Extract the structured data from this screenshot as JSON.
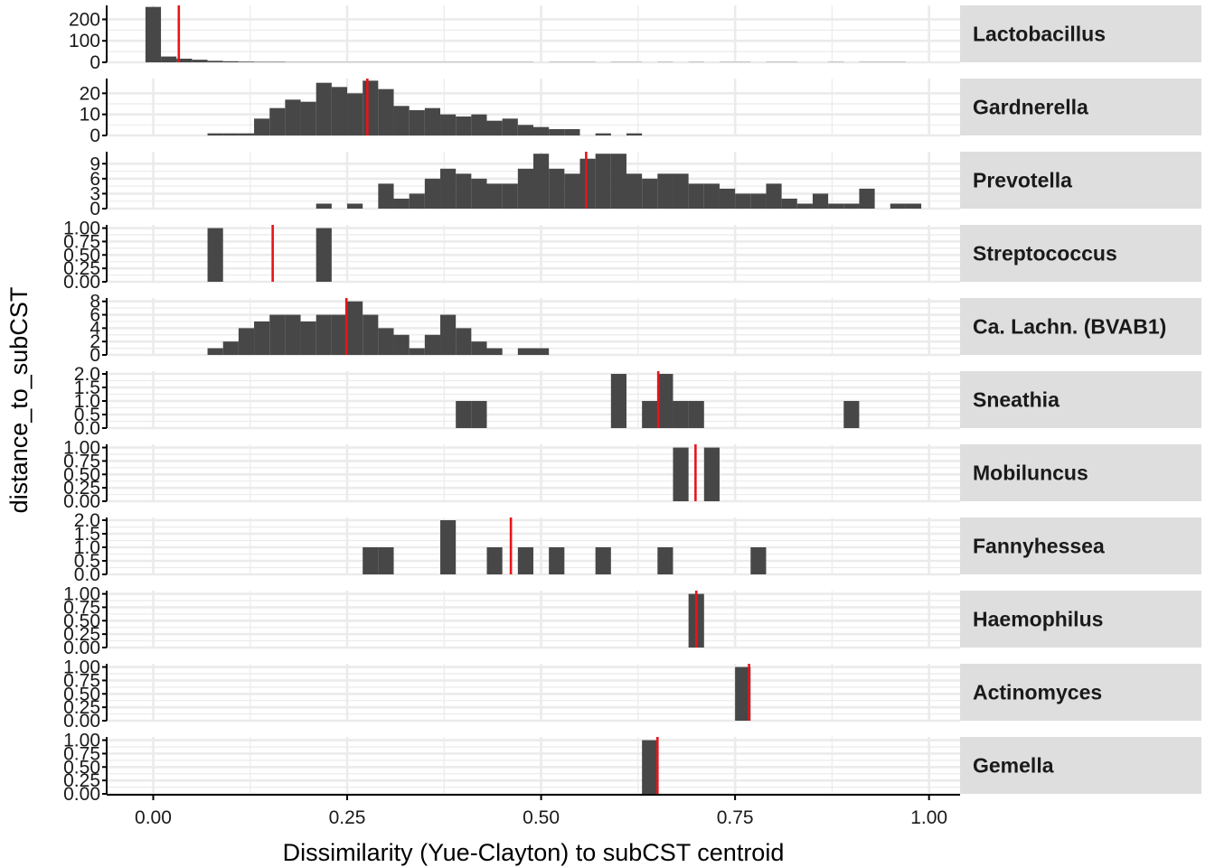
{
  "colors": {
    "bar": "#474747",
    "mean_line": "#e8141b",
    "grid": "#ebebeb",
    "strip": "#dedede",
    "axis": "#000000"
  },
  "chart_data": {
    "type": "bar",
    "xlabel": "Dissimilarity (Yue-Clayton) to subCST centroid",
    "ylabel": "distance_to_subCST",
    "x_ticks": [
      "0.00",
      "0.25",
      "0.50",
      "0.75",
      "1.00"
    ],
    "x_tick_values": [
      0,
      0.25,
      0.5,
      0.75,
      1.0
    ],
    "xlim": [
      -0.06,
      1.04
    ],
    "bin_width": 0.02,
    "grid": true,
    "facets": [
      {
        "name": "Lactobacillus",
        "ylim": [
          0,
          265
        ],
        "y_ticks": [
          0,
          100,
          200
        ],
        "y_tick_labels": [
          "0",
          "100",
          "200"
        ],
        "mean": 0.033,
        "bins": [
          [
            0.0,
            258
          ],
          [
            0.02,
            27
          ],
          [
            0.04,
            17
          ],
          [
            0.06,
            12
          ],
          [
            0.08,
            7
          ],
          [
            0.1,
            5
          ],
          [
            0.12,
            3
          ],
          [
            0.14,
            2
          ],
          [
            0.16,
            2
          ],
          [
            0.18,
            1
          ],
          [
            0.2,
            1
          ],
          [
            0.22,
            1
          ],
          [
            0.24,
            1
          ],
          [
            0.26,
            1
          ],
          [
            0.28,
            1
          ],
          [
            0.3,
            1
          ],
          [
            0.32,
            1
          ],
          [
            0.34,
            1
          ],
          [
            0.36,
            1
          ],
          [
            0.38,
            1
          ],
          [
            0.4,
            1
          ],
          [
            0.42,
            1
          ],
          [
            0.44,
            1
          ],
          [
            0.46,
            1
          ],
          [
            0.48,
            1
          ],
          [
            0.52,
            1
          ],
          [
            0.54,
            1
          ],
          [
            0.56,
            1
          ],
          [
            0.6,
            1
          ],
          [
            0.62,
            1
          ],
          [
            0.66,
            1
          ],
          [
            0.7,
            1
          ],
          [
            0.74,
            1
          ],
          [
            0.76,
            1
          ],
          [
            0.8,
            1
          ],
          [
            0.82,
            1
          ],
          [
            0.88,
            1
          ],
          [
            0.92,
            1
          ],
          [
            0.94,
            1
          ],
          [
            0.96,
            1
          ]
        ]
      },
      {
        "name": "Gardnerella",
        "ylim": [
          0,
          27
        ],
        "y_ticks": [
          0,
          10,
          20
        ],
        "y_tick_labels": [
          "0",
          "10",
          "20"
        ],
        "mean": 0.276,
        "bins": [
          [
            0.08,
            1
          ],
          [
            0.1,
            1
          ],
          [
            0.12,
            1
          ],
          [
            0.14,
            8
          ],
          [
            0.16,
            13
          ],
          [
            0.18,
            17
          ],
          [
            0.2,
            16
          ],
          [
            0.22,
            25
          ],
          [
            0.24,
            23
          ],
          [
            0.26,
            20
          ],
          [
            0.28,
            26
          ],
          [
            0.3,
            22
          ],
          [
            0.32,
            14
          ],
          [
            0.34,
            12
          ],
          [
            0.36,
            13
          ],
          [
            0.38,
            10
          ],
          [
            0.4,
            9
          ],
          [
            0.42,
            10
          ],
          [
            0.44,
            7
          ],
          [
            0.46,
            8
          ],
          [
            0.48,
            5
          ],
          [
            0.5,
            4
          ],
          [
            0.52,
            3
          ],
          [
            0.54,
            3
          ],
          [
            0.58,
            1
          ],
          [
            0.62,
            1
          ]
        ]
      },
      {
        "name": "Prevotella",
        "ylim": [
          0,
          11.4
        ],
        "y_ticks": [
          0,
          3,
          6,
          9
        ],
        "y_tick_labels": [
          "0",
          "3",
          "6",
          "9"
        ],
        "mean": 0.558,
        "bins": [
          [
            0.22,
            1
          ],
          [
            0.26,
            1
          ],
          [
            0.3,
            5
          ],
          [
            0.32,
            2
          ],
          [
            0.34,
            3
          ],
          [
            0.36,
            6
          ],
          [
            0.38,
            8
          ],
          [
            0.4,
            7
          ],
          [
            0.42,
            6
          ],
          [
            0.44,
            5
          ],
          [
            0.46,
            5
          ],
          [
            0.48,
            8
          ],
          [
            0.5,
            11
          ],
          [
            0.52,
            8
          ],
          [
            0.54,
            7
          ],
          [
            0.56,
            10
          ],
          [
            0.58,
            11
          ],
          [
            0.6,
            11
          ],
          [
            0.62,
            7
          ],
          [
            0.64,
            6
          ],
          [
            0.66,
            7
          ],
          [
            0.68,
            7
          ],
          [
            0.7,
            5
          ],
          [
            0.72,
            5
          ],
          [
            0.74,
            4
          ],
          [
            0.76,
            3
          ],
          [
            0.78,
            3
          ],
          [
            0.8,
            5
          ],
          [
            0.82,
            2
          ],
          [
            0.84,
            1
          ],
          [
            0.86,
            3
          ],
          [
            0.88,
            1
          ],
          [
            0.9,
            1
          ],
          [
            0.92,
            4
          ],
          [
            0.96,
            1
          ],
          [
            0.98,
            1
          ]
        ]
      },
      {
        "name": "Streptococcus",
        "ylim": [
          0,
          1.06
        ],
        "y_ticks": [
          0,
          0.25,
          0.5,
          0.75,
          1.0
        ],
        "y_tick_labels": [
          "0.00",
          "0.25",
          "0.50",
          "0.75",
          "1.00"
        ],
        "mean": 0.154,
        "bins": [
          [
            0.08,
            1
          ],
          [
            0.22,
            1
          ]
        ]
      },
      {
        "name": "Ca. Lachn. (BVAB1)",
        "ylim": [
          0,
          8.5
        ],
        "y_ticks": [
          0,
          2,
          4,
          6,
          8
        ],
        "y_tick_labels": [
          "0",
          "2",
          "4",
          "6",
          "8"
        ],
        "mean": 0.249,
        "bins": [
          [
            0.08,
            1
          ],
          [
            0.1,
            2
          ],
          [
            0.12,
            4
          ],
          [
            0.14,
            5
          ],
          [
            0.16,
            6
          ],
          [
            0.18,
            6
          ],
          [
            0.2,
            5
          ],
          [
            0.22,
            6
          ],
          [
            0.24,
            6
          ],
          [
            0.26,
            8
          ],
          [
            0.28,
            6
          ],
          [
            0.3,
            4
          ],
          [
            0.32,
            3
          ],
          [
            0.34,
            1
          ],
          [
            0.36,
            3
          ],
          [
            0.38,
            6
          ],
          [
            0.4,
            4
          ],
          [
            0.42,
            2
          ],
          [
            0.44,
            1
          ],
          [
            0.48,
            1
          ],
          [
            0.5,
            1
          ]
        ]
      },
      {
        "name": "Sneathia",
        "ylim": [
          0,
          2.1
        ],
        "y_ticks": [
          0,
          0.5,
          1.0,
          1.5,
          2.0
        ],
        "y_tick_labels": [
          "0.0",
          "0.5",
          "1.0",
          "1.5",
          "2.0"
        ],
        "mean": 0.651,
        "bins": [
          [
            0.4,
            1
          ],
          [
            0.42,
            1
          ],
          [
            0.6,
            2
          ],
          [
            0.64,
            1
          ],
          [
            0.66,
            2
          ],
          [
            0.68,
            1
          ],
          [
            0.7,
            1
          ],
          [
            0.9,
            1
          ]
        ]
      },
      {
        "name": "Mobiluncus",
        "ylim": [
          0,
          1.06
        ],
        "y_ticks": [
          0,
          0.25,
          0.5,
          0.75,
          1.0
        ],
        "y_tick_labels": [
          "0.00",
          "0.25",
          "0.50",
          "0.75",
          "1.00"
        ],
        "mean": 0.699,
        "bins": [
          [
            0.68,
            1
          ],
          [
            0.72,
            1
          ]
        ]
      },
      {
        "name": "Fannyhessea",
        "ylim": [
          0,
          2.1
        ],
        "y_ticks": [
          0,
          0.5,
          1.0,
          1.5,
          2.0
        ],
        "y_tick_labels": [
          "0.0",
          "0.5",
          "1.0",
          "1.5",
          "2.0"
        ],
        "mean": 0.461,
        "bins": [
          [
            0.28,
            1
          ],
          [
            0.3,
            1
          ],
          [
            0.38,
            2
          ],
          [
            0.44,
            1
          ],
          [
            0.48,
            1
          ],
          [
            0.52,
            1
          ],
          [
            0.58,
            1
          ],
          [
            0.66,
            1
          ],
          [
            0.78,
            1
          ]
        ]
      },
      {
        "name": "Haemophilus",
        "ylim": [
          0,
          1.06
        ],
        "y_ticks": [
          0,
          0.25,
          0.5,
          0.75,
          1.0
        ],
        "y_tick_labels": [
          "0.00",
          "0.25",
          "0.50",
          "0.75",
          "1.00"
        ],
        "mean": 0.7,
        "bins": [
          [
            0.7,
            1
          ]
        ]
      },
      {
        "name": "Actinomyces",
        "ylim": [
          0,
          1.06
        ],
        "y_ticks": [
          0,
          0.25,
          0.5,
          0.75,
          1.0
        ],
        "y_tick_labels": [
          "0.00",
          "0.25",
          "0.50",
          "0.75",
          "1.00"
        ],
        "mean": 0.768,
        "bins": [
          [
            0.76,
            1
          ]
        ]
      },
      {
        "name": "Gemella",
        "ylim": [
          0,
          1.06
        ],
        "y_ticks": [
          0,
          0.25,
          0.5,
          0.75,
          1.0
        ],
        "y_tick_labels": [
          "0.00",
          "0.25",
          "0.50",
          "0.75",
          "1.00"
        ],
        "mean": 0.65,
        "bins": [
          [
            0.64,
            1
          ]
        ]
      }
    ]
  }
}
